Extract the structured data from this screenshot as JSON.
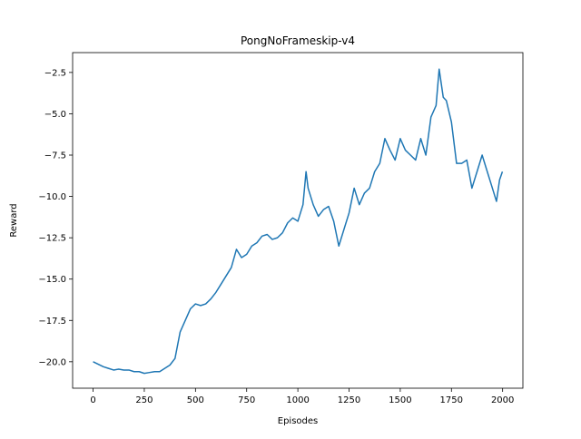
{
  "chart_data": {
    "type": "line",
    "title": "PongNoFrameskip-v4",
    "x_label": "Episodes",
    "y_label": "Reward",
    "x": [
      0,
      25,
      50,
      75,
      100,
      125,
      150,
      175,
      200,
      225,
      250,
      275,
      300,
      325,
      350,
      375,
      400,
      425,
      450,
      475,
      500,
      525,
      550,
      575,
      600,
      625,
      650,
      675,
      700,
      725,
      750,
      775,
      800,
      825,
      850,
      875,
      900,
      925,
      950,
      975,
      1000,
      1025,
      1040,
      1050,
      1075,
      1100,
      1125,
      1150,
      1175,
      1200,
      1225,
      1250,
      1275,
      1300,
      1325,
      1350,
      1375,
      1400,
      1425,
      1450,
      1475,
      1500,
      1525,
      1550,
      1575,
      1600,
      1625,
      1650,
      1675,
      1690,
      1710,
      1725,
      1750,
      1775,
      1800,
      1825,
      1850,
      1875,
      1900,
      1925,
      1950,
      1970,
      1985,
      1999
    ],
    "series": [
      {
        "name": "Reward",
        "color": "#1f77b4",
        "values": [
          -20.0,
          -20.15,
          -20.3,
          -20.4,
          -20.5,
          -20.45,
          -20.5,
          -20.5,
          -20.6,
          -20.6,
          -20.7,
          -20.65,
          -20.6,
          -20.6,
          -20.4,
          -20.2,
          -19.8,
          -18.2,
          -17.5,
          -16.8,
          -16.5,
          -16.6,
          -16.5,
          -16.2,
          -15.8,
          -15.3,
          -14.8,
          -14.3,
          -13.2,
          -13.7,
          -13.5,
          -13.0,
          -12.8,
          -12.4,
          -12.3,
          -12.6,
          -12.5,
          -12.2,
          -11.6,
          -11.3,
          -11.5,
          -10.5,
          -8.5,
          -9.5,
          -10.5,
          -11.2,
          -10.8,
          -10.6,
          -11.5,
          -13.0,
          -12.0,
          -11.0,
          -9.5,
          -10.5,
          -9.8,
          -9.5,
          -8.5,
          -8.0,
          -6.5,
          -7.2,
          -7.8,
          -6.5,
          -7.2,
          -7.5,
          -7.8,
          -6.5,
          -7.5,
          -5.2,
          -4.5,
          -2.3,
          -4.0,
          -4.2,
          -5.5,
          -8.0,
          -8.0,
          -7.8,
          -9.5,
          -8.5,
          -7.5,
          -8.5,
          -9.5,
          -10.3,
          -9.0,
          -8.5
        ]
      }
    ],
    "xlim": [
      -100,
      2099
    ],
    "ylim": [
      -21.6,
      -1.3
    ],
    "xticks": [
      0,
      250,
      500,
      750,
      1000,
      1250,
      1500,
      1750,
      2000
    ],
    "yticks": [
      {
        "value": -20,
        "label": "−20.0"
      },
      {
        "value": -17.5,
        "label": "−17.5"
      },
      {
        "value": -15,
        "label": "−15.0"
      },
      {
        "value": -12.5,
        "label": "−12.5"
      },
      {
        "value": -10,
        "label": "−10.0"
      },
      {
        "value": -7.5,
        "label": "−7.5"
      },
      {
        "value": -5,
        "label": "−5.0"
      },
      {
        "value": -2.5,
        "label": "−2.5"
      }
    ]
  }
}
